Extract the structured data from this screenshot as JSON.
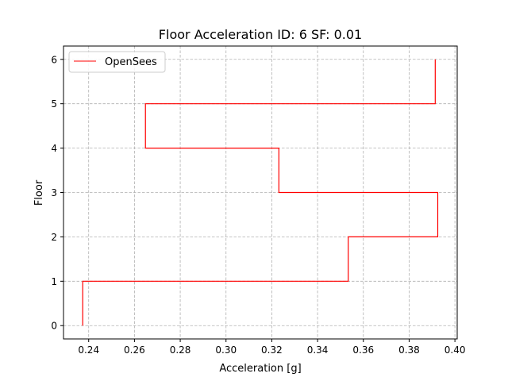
{
  "chart_data": {
    "type": "line",
    "title": "Floor Acceleration ID: 6  SF: 0.01",
    "xlabel": "Acceleration [g]",
    "ylabel": "Floor",
    "xlim": [
      0.229,
      0.401
    ],
    "ylim": [
      -0.3,
      6.3
    ],
    "xticks": [
      0.24,
      0.26,
      0.28,
      0.3,
      0.32,
      0.34,
      0.36,
      0.38,
      0.4
    ],
    "xtick_labels": [
      "0.24",
      "0.26",
      "0.28",
      "0.30",
      "0.32",
      "0.34",
      "0.36",
      "0.38",
      "0.40"
    ],
    "yticks": [
      0,
      1,
      2,
      3,
      4,
      5,
      6
    ],
    "ytick_labels": [
      "0",
      "1",
      "2",
      "3",
      "4",
      "5",
      "6"
    ],
    "grid": true,
    "legend_position": "top-left",
    "series": [
      {
        "name": "OpenSees",
        "color": "#ff0000",
        "step": "floor-profile",
        "points": [
          {
            "x": 0.2374,
            "y": 0
          },
          {
            "x": 0.2374,
            "y": 1
          },
          {
            "x": 0.3534,
            "y": 1
          },
          {
            "x": 0.3534,
            "y": 2
          },
          {
            "x": 0.3925,
            "y": 2
          },
          {
            "x": 0.3925,
            "y": 3
          },
          {
            "x": 0.3231,
            "y": 3
          },
          {
            "x": 0.3231,
            "y": 4
          },
          {
            "x": 0.2648,
            "y": 4
          },
          {
            "x": 0.2648,
            "y": 5
          },
          {
            "x": 0.3914,
            "y": 5
          },
          {
            "x": 0.3914,
            "y": 6
          }
        ]
      }
    ]
  }
}
